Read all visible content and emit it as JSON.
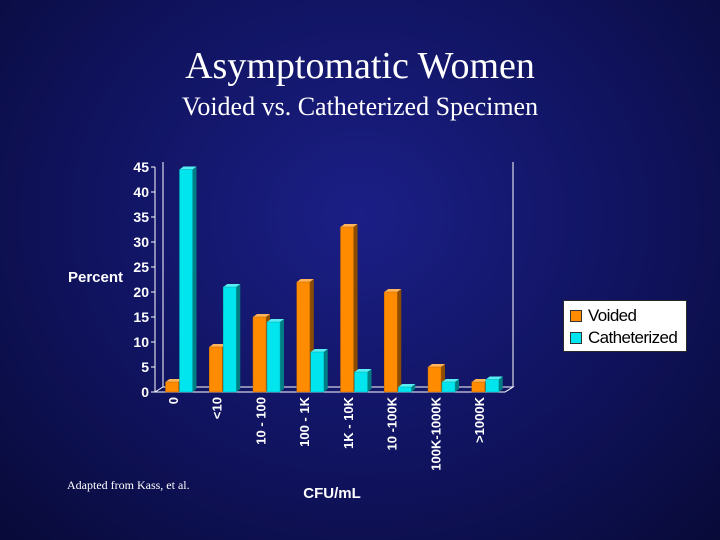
{
  "slide": {
    "title": "Asymptomatic Women",
    "subtitle": "Voided vs. Catheterized Specimen",
    "note": "Adapted from Kass, et al."
  },
  "colors": {
    "voided": "#FF8C00",
    "catheterized": "#00E5EE",
    "background": "#14176E"
  },
  "chart_data": {
    "type": "bar",
    "title": "",
    "xlabel": "CFU/mL",
    "ylabel": "Percent",
    "ylim": [
      0,
      45
    ],
    "yticks": [
      0,
      5,
      10,
      15,
      20,
      25,
      30,
      35,
      40,
      45
    ],
    "categories": [
      "0",
      "<10",
      "10 - 100",
      "100 - 1K",
      "1K - 10K",
      "10 -100K",
      "100K-1000K",
      ">1000K"
    ],
    "series": [
      {
        "name": "Voided",
        "values": [
          2,
          9,
          15,
          22,
          33,
          20,
          5,
          2
        ]
      },
      {
        "name": "Catheterized",
        "values": [
          44.5,
          21,
          14,
          8,
          4,
          1,
          2,
          2.5
        ]
      }
    ],
    "legend_position": "right",
    "grid": false
  }
}
